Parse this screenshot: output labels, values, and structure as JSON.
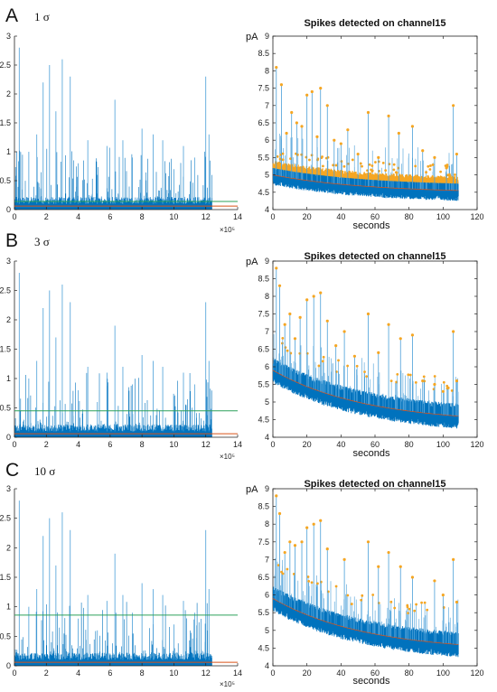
{
  "panels": [
    {
      "letter": "A",
      "sigma_label": "1 σ",
      "threshold": 0.14
    },
    {
      "letter": "B",
      "sigma_label": "3 σ",
      "threshold": 0.45
    },
    {
      "letter": "C",
      "sigma_label": "10 σ",
      "threshold": 0.86
    }
  ],
  "colors": {
    "signal": "#0072bd",
    "signal_light": "#4a9fd8",
    "mean_line": "#d95319",
    "threshold_line": "#2ca05a",
    "spike_marker": "#f5a623",
    "axis": "#222222"
  },
  "chart_data": [
    {
      "type": "line",
      "panel": "A-left",
      "xlim": [
        0,
        14
      ],
      "ylim": [
        0,
        3
      ],
      "xticks": [
        "0",
        "2",
        "4",
        "6",
        "8",
        "10",
        "12",
        "14"
      ],
      "yticks": [
        "0",
        "0.5",
        "1",
        "1.5",
        "2",
        "2.5",
        "3"
      ],
      "x_exponent_label": "×10⁵",
      "signal_end_x": 12.4,
      "baseline_level": 0.06,
      "threshold": 0.14,
      "spike_peaks": [
        {
          "x": 0.3,
          "y": 2.8
        },
        {
          "x": 0.9,
          "y": 1.0
        },
        {
          "x": 1.4,
          "y": 1.3
        },
        {
          "x": 1.8,
          "y": 2.2
        },
        {
          "x": 2.2,
          "y": 2.5
        },
        {
          "x": 2.6,
          "y": 1.7
        },
        {
          "x": 3.0,
          "y": 2.6
        },
        {
          "x": 3.5,
          "y": 2.3
        },
        {
          "x": 4.0,
          "y": 0.8
        },
        {
          "x": 4.6,
          "y": 1.2
        },
        {
          "x": 5.2,
          "y": 0.6
        },
        {
          "x": 5.8,
          "y": 1.1
        },
        {
          "x": 6.3,
          "y": 1.9
        },
        {
          "x": 6.8,
          "y": 1.2
        },
        {
          "x": 7.4,
          "y": 0.9
        },
        {
          "x": 8.0,
          "y": 1.4
        },
        {
          "x": 8.7,
          "y": 1.3
        },
        {
          "x": 9.3,
          "y": 1.2
        },
        {
          "x": 10.0,
          "y": 0.7
        },
        {
          "x": 10.6,
          "y": 1.1
        },
        {
          "x": 11.3,
          "y": 0.9
        },
        {
          "x": 12.0,
          "y": 2.3
        },
        {
          "x": 12.2,
          "y": 1.3
        }
      ]
    },
    {
      "type": "scatter",
      "panel": "A-right",
      "title": "Spikes detected on channel15",
      "ylabel": "pA",
      "xlabel": "seconds",
      "xlim": [
        0,
        120
      ],
      "ylim": [
        4,
        9
      ],
      "xticks": [
        "0",
        "20",
        "40",
        "60",
        "80",
        "100",
        "120"
      ],
      "yticks": [
        "4",
        "4.5",
        "5",
        "5.5",
        "6",
        "6.5",
        "7",
        "7.5",
        "8",
        "8.5",
        "9"
      ],
      "signal_end_x": 109,
      "baseline_start": 5.0,
      "baseline_end": 4.55,
      "band_half_width": 0.25,
      "dense_markers": true,
      "spike_peaks": [
        {
          "x": 2,
          "y": 8.1
        },
        {
          "x": 5,
          "y": 7.6
        },
        {
          "x": 8,
          "y": 6.2
        },
        {
          "x": 11,
          "y": 6.8
        },
        {
          "x": 14,
          "y": 6.5
        },
        {
          "x": 17,
          "y": 6.4
        },
        {
          "x": 20,
          "y": 7.3
        },
        {
          "x": 23,
          "y": 7.4
        },
        {
          "x": 26,
          "y": 6.1
        },
        {
          "x": 28,
          "y": 7.5
        },
        {
          "x": 32,
          "y": 7.0
        },
        {
          "x": 36,
          "y": 6.0
        },
        {
          "x": 40,
          "y": 5.9
        },
        {
          "x": 44,
          "y": 6.3
        },
        {
          "x": 50,
          "y": 5.6
        },
        {
          "x": 56,
          "y": 6.8
        },
        {
          "x": 62,
          "y": 5.5
        },
        {
          "x": 68,
          "y": 6.7
        },
        {
          "x": 74,
          "y": 6.2
        },
        {
          "x": 82,
          "y": 6.4
        },
        {
          "x": 88,
          "y": 5.7
        },
        {
          "x": 95,
          "y": 5.5
        },
        {
          "x": 102,
          "y": 5.2
        },
        {
          "x": 106,
          "y": 7.0
        },
        {
          "x": 108,
          "y": 5.6
        }
      ]
    },
    {
      "type": "line",
      "panel": "B-left",
      "xlim": [
        0,
        14
      ],
      "ylim": [
        0,
        3
      ],
      "xticks": [
        "0",
        "2",
        "4",
        "6",
        "8",
        "10",
        "12",
        "14"
      ],
      "yticks": [
        "0",
        "0.5",
        "1",
        "1.5",
        "2",
        "2.5",
        "3"
      ],
      "x_exponent_label": "×10⁵",
      "signal_end_x": 12.4,
      "baseline_level": 0.06,
      "threshold": 0.45,
      "spike_peaks": [
        {
          "x": 0.3,
          "y": 2.8
        },
        {
          "x": 0.9,
          "y": 1.0
        },
        {
          "x": 1.4,
          "y": 1.3
        },
        {
          "x": 1.8,
          "y": 2.2
        },
        {
          "x": 2.2,
          "y": 2.5
        },
        {
          "x": 2.6,
          "y": 1.7
        },
        {
          "x": 3.0,
          "y": 2.6
        },
        {
          "x": 3.5,
          "y": 2.3
        },
        {
          "x": 4.0,
          "y": 0.8
        },
        {
          "x": 4.6,
          "y": 1.2
        },
        {
          "x": 5.2,
          "y": 0.6
        },
        {
          "x": 5.8,
          "y": 1.1
        },
        {
          "x": 6.3,
          "y": 1.9
        },
        {
          "x": 6.8,
          "y": 1.2
        },
        {
          "x": 7.4,
          "y": 0.9
        },
        {
          "x": 8.0,
          "y": 1.4
        },
        {
          "x": 8.7,
          "y": 1.3
        },
        {
          "x": 9.3,
          "y": 1.2
        },
        {
          "x": 10.0,
          "y": 0.7
        },
        {
          "x": 10.6,
          "y": 1.1
        },
        {
          "x": 11.3,
          "y": 0.9
        },
        {
          "x": 12.0,
          "y": 2.3
        },
        {
          "x": 12.2,
          "y": 1.3
        }
      ]
    },
    {
      "type": "scatter",
      "panel": "B-right",
      "title": "Spikes detected on channel15",
      "ylabel": "pA",
      "xlabel": "seconds",
      "xlim": [
        0,
        120
      ],
      "ylim": [
        4,
        9
      ],
      "xticks": [
        "0",
        "20",
        "40",
        "60",
        "80",
        "100",
        "120"
      ],
      "yticks": [
        "4",
        "4.5",
        "5",
        "5.5",
        "6",
        "6.5",
        "7",
        "7.5",
        "8",
        "8.5",
        "9"
      ],
      "signal_end_x": 109,
      "baseline_start": 5.9,
      "baseline_end": 4.6,
      "band_half_width": 0.3,
      "dense_markers": false,
      "spike_peaks": [
        {
          "x": 2,
          "y": 8.8
        },
        {
          "x": 4,
          "y": 8.3
        },
        {
          "x": 7,
          "y": 7.2
        },
        {
          "x": 10,
          "y": 7.5
        },
        {
          "x": 13,
          "y": 6.8
        },
        {
          "x": 16,
          "y": 7.4
        },
        {
          "x": 20,
          "y": 7.9
        },
        {
          "x": 24,
          "y": 8.0
        },
        {
          "x": 28,
          "y": 8.1
        },
        {
          "x": 32,
          "y": 7.3
        },
        {
          "x": 37,
          "y": 6.6
        },
        {
          "x": 42,
          "y": 7.0
        },
        {
          "x": 48,
          "y": 6.3
        },
        {
          "x": 56,
          "y": 7.5
        },
        {
          "x": 62,
          "y": 6.4
        },
        {
          "x": 68,
          "y": 7.2
        },
        {
          "x": 75,
          "y": 6.8
        },
        {
          "x": 82,
          "y": 6.9
        },
        {
          "x": 88,
          "y": 5.6
        },
        {
          "x": 95,
          "y": 5.5
        },
        {
          "x": 100,
          "y": 5.3
        },
        {
          "x": 103,
          "y": 5.4
        },
        {
          "x": 106,
          "y": 7.0
        },
        {
          "x": 108,
          "y": 5.6
        }
      ]
    },
    {
      "type": "line",
      "panel": "C-left",
      "xlim": [
        0,
        14
      ],
      "ylim": [
        0,
        3
      ],
      "xticks": [
        "0",
        "2",
        "4",
        "6",
        "8",
        "10",
        "12",
        "14"
      ],
      "yticks": [
        "0",
        "0.5",
        "1",
        "1.5",
        "2",
        "2.5",
        "3"
      ],
      "x_exponent_label": "×10⁵",
      "signal_end_x": 12.4,
      "baseline_level": 0.06,
      "threshold": 0.86,
      "spike_peaks": [
        {
          "x": 0.3,
          "y": 2.8
        },
        {
          "x": 0.9,
          "y": 1.0
        },
        {
          "x": 1.4,
          "y": 1.3
        },
        {
          "x": 1.8,
          "y": 2.2
        },
        {
          "x": 2.2,
          "y": 2.5
        },
        {
          "x": 2.6,
          "y": 1.7
        },
        {
          "x": 3.0,
          "y": 2.6
        },
        {
          "x": 3.5,
          "y": 2.3
        },
        {
          "x": 4.0,
          "y": 0.8
        },
        {
          "x": 4.6,
          "y": 1.2
        },
        {
          "x": 5.2,
          "y": 0.6
        },
        {
          "x": 5.8,
          "y": 1.1
        },
        {
          "x": 6.3,
          "y": 1.9
        },
        {
          "x": 6.8,
          "y": 1.2
        },
        {
          "x": 7.4,
          "y": 0.9
        },
        {
          "x": 8.0,
          "y": 1.4
        },
        {
          "x": 8.7,
          "y": 1.3
        },
        {
          "x": 9.3,
          "y": 1.2
        },
        {
          "x": 10.0,
          "y": 0.7
        },
        {
          "x": 10.6,
          "y": 1.1
        },
        {
          "x": 11.3,
          "y": 0.9
        },
        {
          "x": 12.0,
          "y": 2.3
        },
        {
          "x": 12.2,
          "y": 1.3
        }
      ]
    },
    {
      "type": "scatter",
      "panel": "C-right",
      "title": "Spikes detected on channel15",
      "ylabel": "pA",
      "xlabel": "seconds",
      "xlim": [
        0,
        120
      ],
      "ylim": [
        4,
        9
      ],
      "xticks": [
        "0",
        "20",
        "40",
        "60",
        "80",
        "100",
        "120"
      ],
      "yticks": [
        "4",
        "4.5",
        "5",
        "5.5",
        "6",
        "6.5",
        "7",
        "7.5",
        "8",
        "8.5",
        "9"
      ],
      "signal_end_x": 109,
      "baseline_start": 5.9,
      "baseline_end": 4.6,
      "band_half_width": 0.3,
      "dense_markers": false,
      "spike_peaks": [
        {
          "x": 2,
          "y": 8.8
        },
        {
          "x": 4,
          "y": 8.3
        },
        {
          "x": 7,
          "y": 7.2
        },
        {
          "x": 10,
          "y": 7.5
        },
        {
          "x": 13,
          "y": 7.4
        },
        {
          "x": 17,
          "y": 7.5
        },
        {
          "x": 20,
          "y": 7.9
        },
        {
          "x": 24,
          "y": 8.0
        },
        {
          "x": 28,
          "y": 8.1
        },
        {
          "x": 32,
          "y": 7.3
        },
        {
          "x": 42,
          "y": 7.0
        },
        {
          "x": 56,
          "y": 7.5
        },
        {
          "x": 62,
          "y": 6.8
        },
        {
          "x": 68,
          "y": 7.2
        },
        {
          "x": 75,
          "y": 6.8
        },
        {
          "x": 82,
          "y": 6.5
        },
        {
          "x": 95,
          "y": 6.4
        },
        {
          "x": 100,
          "y": 6.0
        },
        {
          "x": 106,
          "y": 7.0
        },
        {
          "x": 108,
          "y": 5.8
        }
      ]
    }
  ]
}
